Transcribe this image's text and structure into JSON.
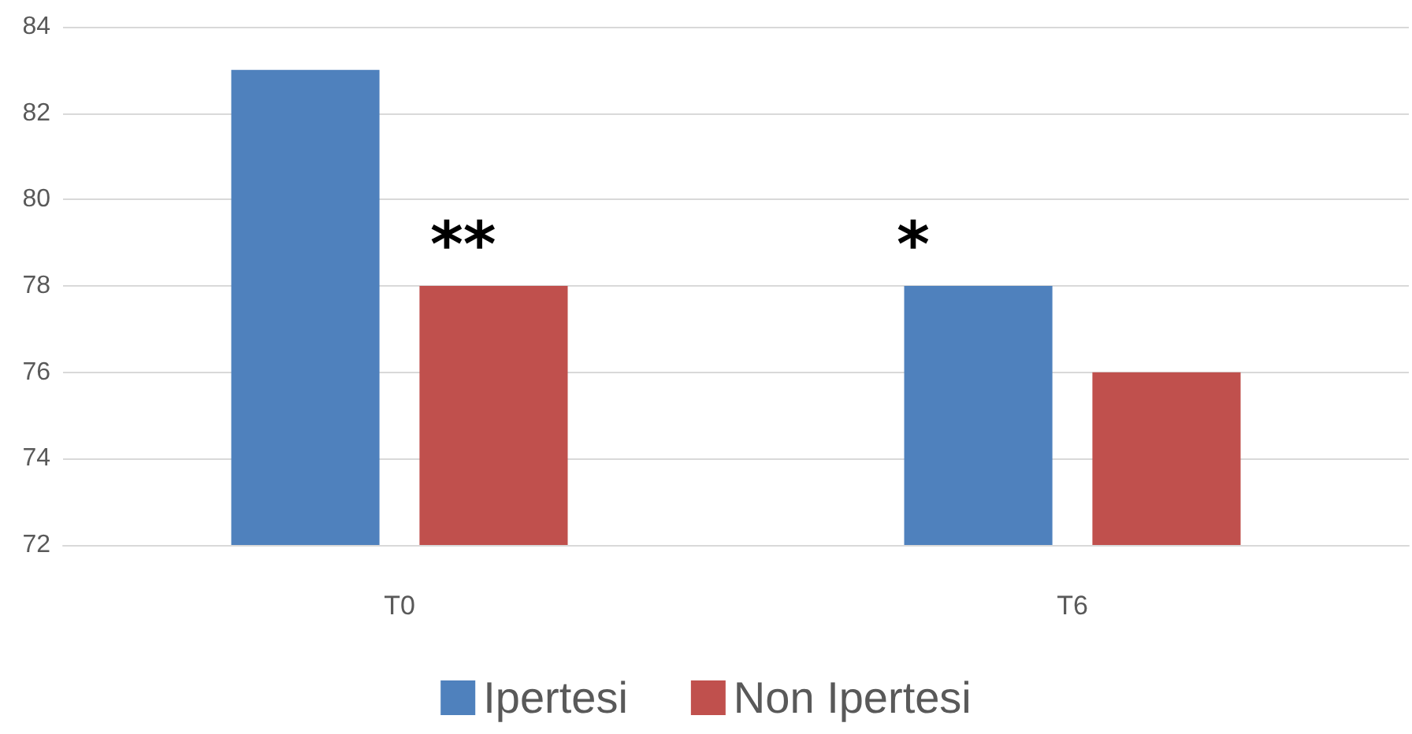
{
  "chart_data": {
    "type": "bar",
    "categories": [
      "T0",
      "T6"
    ],
    "series": [
      {
        "name": "Ipertesi",
        "color": "#4f81bd",
        "values": [
          83,
          78
        ]
      },
      {
        "name": "Non Ipertesi",
        "color": "#c0504d",
        "values": [
          78,
          76
        ]
      }
    ],
    "ylim": [
      72,
      84
    ],
    "yticks": [
      72,
      74,
      76,
      78,
      80,
      82,
      84
    ],
    "grid": "y",
    "legend": "bottom",
    "annotations": [
      "**",
      "*"
    ]
  }
}
